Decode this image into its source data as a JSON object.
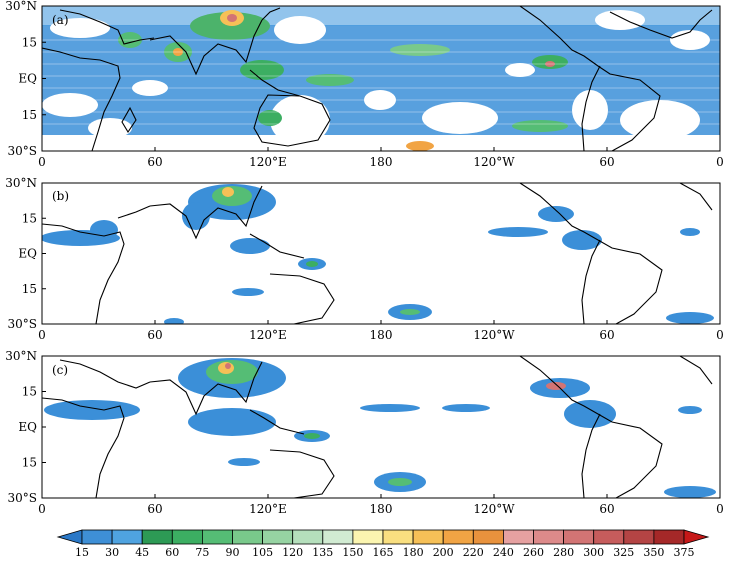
{
  "panels": [
    {
      "id": "a",
      "label": "(a)"
    },
    {
      "id": "b",
      "label": "(b)"
    },
    {
      "id": "c",
      "label": "(c)"
    }
  ],
  "axes": {
    "lon_ticks": [
      "0",
      "60",
      "120°E",
      "180",
      "120°W",
      "60",
      "0"
    ],
    "lat_ticks": [
      "30°N",
      "15",
      "EQ",
      "15",
      "30°S"
    ]
  },
  "colorbar": {
    "levels": [
      "15",
      "30",
      "45",
      "60",
      "75",
      "90",
      "105",
      "120",
      "135",
      "150",
      "165",
      "180",
      "200",
      "220",
      "240",
      "260",
      "280",
      "300",
      "325",
      "350",
      "375"
    ],
    "colors": [
      "#2a78c7",
      "#3e8fd6",
      "#4fa3e0",
      "#2d9a55",
      "#3cae62",
      "#55bd75",
      "#79c98b",
      "#96d3a2",
      "#b5dfbc",
      "#d1ebd2",
      "#fbf5b0",
      "#f9df80",
      "#f6c057",
      "#f1a444",
      "#e8923d",
      "#e6a1a1",
      "#dd8a8a",
      "#d27474",
      "#c65c5c",
      "#b44444",
      "#a52828",
      "#c61818"
    ]
  }
}
